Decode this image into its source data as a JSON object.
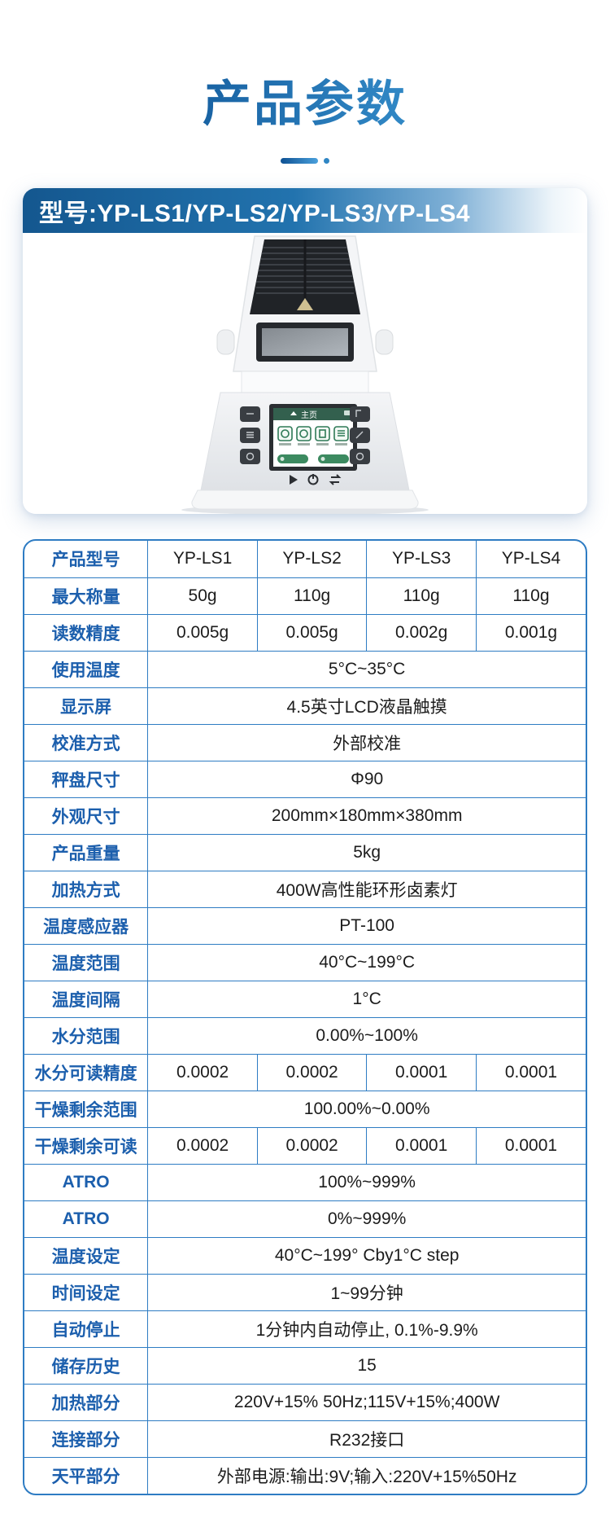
{
  "page": {
    "title": "产品参数"
  },
  "card": {
    "header": "型号:YP-LS1/YP-LS2/YP-LS3/YP-LS4",
    "device_screen_title": "主页"
  },
  "table": {
    "header": {
      "label": "产品型号",
      "values": [
        "YP-LS1",
        "YP-LS2",
        "YP-LS3",
        "YP-LS4"
      ]
    },
    "rows": [
      {
        "label": "最大称量",
        "values": [
          "50g",
          "110g",
          "110g",
          "110g"
        ]
      },
      {
        "label": "读数精度",
        "values": [
          "0.005g",
          "0.005g",
          "0.002g",
          "0.001g"
        ]
      },
      {
        "label": "使用温度",
        "span": "5°C~35°C"
      },
      {
        "label": "显示屏",
        "span": "4.5英寸LCD液晶触摸"
      },
      {
        "label": "校准方式",
        "span": "外部校准"
      },
      {
        "label": "秤盘尺寸",
        "span": "Φ90"
      },
      {
        "label": "外观尺寸",
        "span": "200mm×180mm×380mm"
      },
      {
        "label": "产品重量",
        "span": "5kg"
      },
      {
        "label": "加热方式",
        "span": "400W高性能环形卤素灯"
      },
      {
        "label": "温度感应器",
        "span": "PT-100"
      },
      {
        "label": "温度范围",
        "span": "40°C~199°C"
      },
      {
        "label": "温度间隔",
        "span": "1°C"
      },
      {
        "label": "水分范围",
        "span": "0.00%~100%"
      },
      {
        "label": "水分可读精度",
        "values": [
          "0.0002",
          "0.0002",
          "0.0001",
          "0.0001"
        ]
      },
      {
        "label": "干燥剩余范围",
        "span": "100.00%~0.00%"
      },
      {
        "label": "干燥剩余可读",
        "values": [
          "0.0002",
          "0.0002",
          "0.0001",
          "0.0001"
        ]
      },
      {
        "label": "ATRO",
        "span": "100%~999%"
      },
      {
        "label": "ATRO",
        "span": "0%~999%"
      },
      {
        "label": "温度设定",
        "span": "40°C~199° Cby1°C step"
      },
      {
        "label": "时间设定",
        "span": "1~99分钟"
      },
      {
        "label": "自动停止",
        "span": "1分钟内自动停止, 0.1%-9.9%"
      },
      {
        "label": "储存历史",
        "span": "15"
      },
      {
        "label": "加热部分",
        "span": "220V+15% 50Hz;115V+15%;400W"
      },
      {
        "label": "连接部分",
        "span": "R232接口"
      },
      {
        "label": "天平部分",
        "span": "外部电源:输出:9V;输入:220V+15%50Hz"
      }
    ]
  },
  "colors": {
    "title_gradient_start": "#0f5496",
    "title_gradient_end": "#3b97d3",
    "card_header_dark": "#14578f",
    "table_border": "#2e7cc3",
    "label_blue": "#1c5fad",
    "value_text": "#1c1c1c"
  }
}
